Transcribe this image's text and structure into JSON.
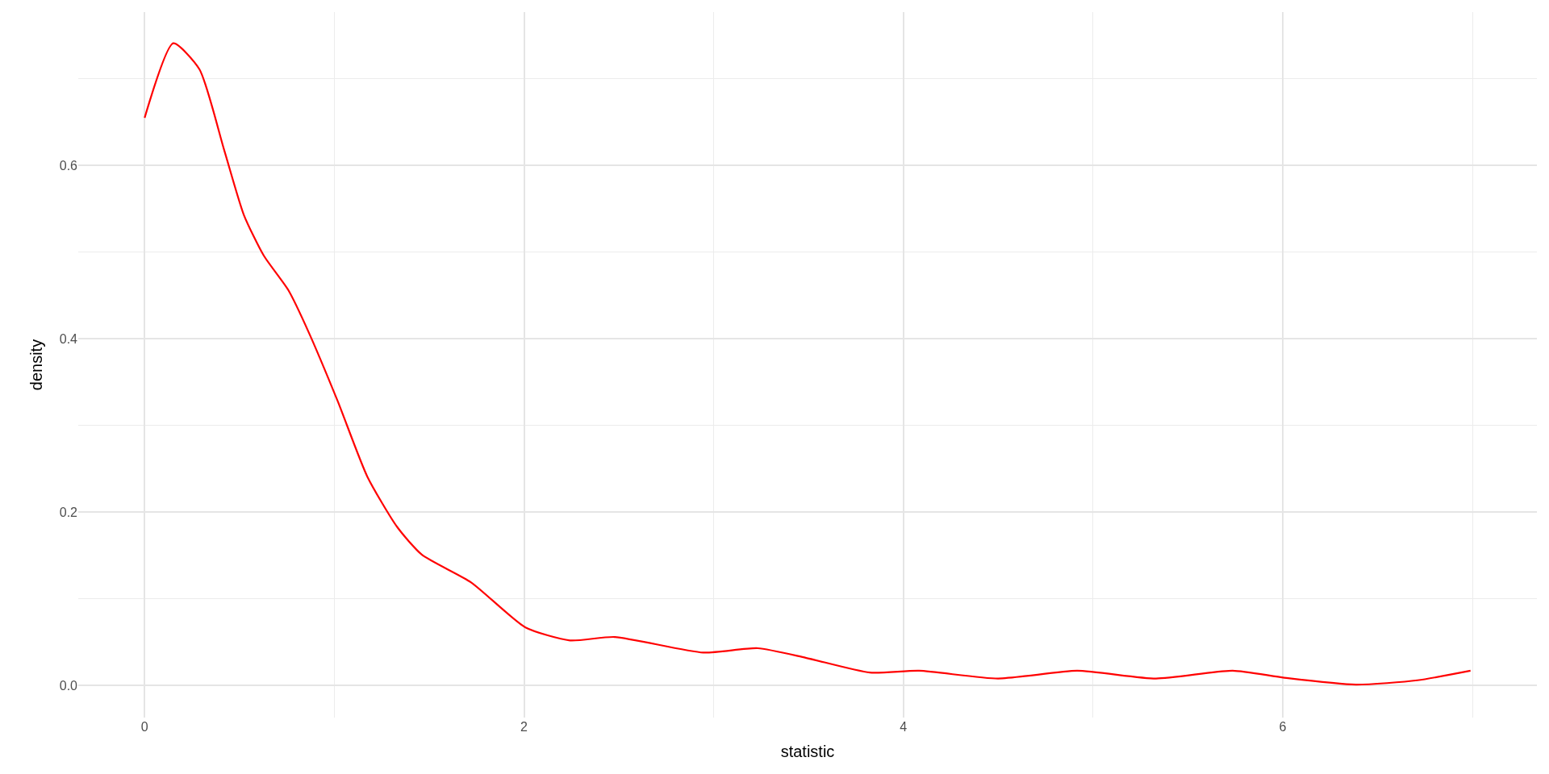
{
  "chart_data": {
    "type": "line",
    "xlabel": "statistic",
    "ylabel": "density",
    "x": [
      0,
      0.151,
      0.289,
      0.419,
      0.523,
      0.628,
      0.758,
      0.862,
      1.018,
      1.174,
      1.331,
      1.461,
      1.721,
      2.008,
      2.242,
      2.477,
      2.945,
      3.232,
      3.485,
      3.823,
      4.083,
      4.499,
      4.916,
      5.332,
      5.735,
      6.008,
      6.385,
      6.71,
      6.99
    ],
    "series": [
      {
        "color": "#ff0000",
        "values": [
          0.655,
          0.741,
          0.711,
          0.618,
          0.543,
          0.496,
          0.456,
          0.409,
          0.328,
          0.241,
          0.183,
          0.151,
          0.119,
          0.067,
          0.052,
          0.056,
          0.038,
          0.043,
          0.032,
          0.015,
          0.017,
          0.008,
          0.017,
          0.008,
          0.017,
          0.009,
          0.001,
          0.006,
          0.017
        ]
      }
    ],
    "xlim": [
      -0.35,
      7.34
    ],
    "ylim": [
      -0.037,
      0.777
    ],
    "xticks": [
      0,
      2,
      4,
      6
    ],
    "yticks": [
      {
        "value": 0,
        "label": "0.0"
      },
      {
        "value": 0.2,
        "label": "0.2"
      },
      {
        "value": 0.4,
        "label": "0.4"
      },
      {
        "value": 0.6,
        "label": "0.6"
      }
    ],
    "grid": true,
    "marker": "none",
    "line_style": "solid"
  }
}
